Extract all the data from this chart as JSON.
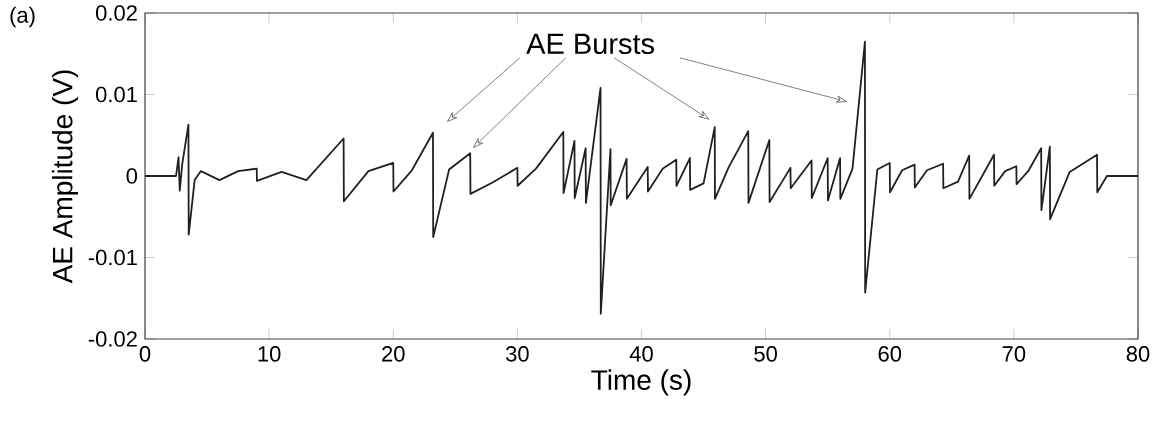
{
  "chart_data": {
    "type": "line",
    "xlabel": "Time (s)",
    "ylabel": "AE Amplitude (V)",
    "annotations": [
      "AE Bursts",
      "(a)"
    ],
    "x": [
      0,
      2.5,
      2.7,
      2.8,
      3.0,
      3.5,
      3.52,
      4.0,
      4.5,
      6,
      7.5,
      9.0,
      9.02,
      11,
      13,
      16.0,
      16.02,
      18,
      20.0,
      20.02,
      21.5,
      23.2,
      23.22,
      24.5,
      26.2,
      26.22,
      28,
      30,
      30.02,
      31.5,
      33.7,
      33.72,
      34.6,
      34.62,
      35.5,
      35.52,
      36.7,
      36.72,
      37.5,
      37.52,
      38.8,
      38.82,
      40.5,
      40.52,
      41.7,
      42.8,
      42.82,
      43.9,
      43.92,
      45,
      45.9,
      45.92,
      47,
      48.6,
      48.62,
      50.3,
      50.32,
      52,
      52.02,
      53.7,
      53.72,
      55,
      55.02,
      56,
      56.02,
      57,
      58,
      58.02,
      59,
      60,
      60.02,
      61,
      62,
      62.02,
      63,
      64.3,
      64.32,
      65.5,
      66.4,
      66.42,
      68.4,
      68.42,
      69.3,
      70.2,
      70.22,
      71.2,
      72.2,
      72.22,
      72.9,
      72.92,
      74.5,
      76.7,
      76.72,
      77.5,
      80
    ],
    "values": [
      0,
      0,
      0.0023,
      -0.0018,
      0.0015,
      0.0063,
      -0.0072,
      -0.0005,
      0.0006,
      -0.0005,
      0.0006,
      0.0009,
      -0.0006,
      0.0005,
      -0.0005,
      0.0046,
      -0.0031,
      0.0006,
      0.0016,
      -0.0019,
      0.0007,
      0.0053,
      -0.0075,
      0.0008,
      0.0028,
      -0.0022,
      -0.0008,
      0.001,
      -0.0012,
      0.0009,
      0.0054,
      -0.0021,
      0.0043,
      -0.0027,
      0.0034,
      -0.0033,
      0.0108,
      -0.0169,
      0.0033,
      -0.0036,
      0.0021,
      -0.0028,
      0.0011,
      -0.0019,
      0.0009,
      0.002,
      -0.0012,
      0.0022,
      -0.0017,
      -0.0009,
      0.006,
      -0.0028,
      0.001,
      0.0055,
      -0.0033,
      0.0044,
      -0.0032,
      0.001,
      -0.0015,
      0.0019,
      -0.0027,
      0.0022,
      -0.003,
      0.0022,
      -0.0028,
      0.0009,
      0.0165,
      -0.0143,
      0.0008,
      0.0016,
      -0.002,
      0.0007,
      0.0014,
      -0.0014,
      0.0007,
      0.0015,
      -0.0015,
      -0.0007,
      0.0025,
      -0.0028,
      0.0026,
      -0.0012,
      0.0006,
      0.0012,
      -0.001,
      0.0007,
      0.0034,
      -0.0042,
      0.0036,
      -0.0053,
      0.0005,
      0.0026,
      -0.002,
      0,
      0
    ],
    "color": "#231f20",
    "xlim": [
      0,
      80
    ],
    "xticks": [
      0,
      10,
      20,
      30,
      40,
      50,
      60,
      70,
      80
    ],
    "ylim": [
      -0.02,
      0.02
    ],
    "yticks": [
      -0.02,
      -0.01,
      0,
      0.01,
      0.02
    ],
    "grid": false,
    "marker": "none",
    "line_style": "solid"
  }
}
